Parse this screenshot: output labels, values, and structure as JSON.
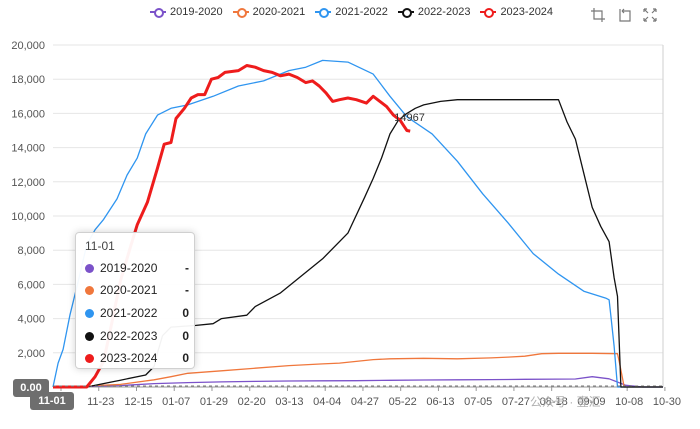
{
  "legend": [
    {
      "name": "2019-2020",
      "color": "#7b52c9"
    },
    {
      "name": "2020-2021",
      "color": "#f0773c"
    },
    {
      "name": "2021-2022",
      "color": "#2f95f0"
    },
    {
      "name": "2022-2023",
      "color": "#111111"
    },
    {
      "name": "2023-2024",
      "color": "#ee1c1c"
    }
  ],
  "toolbox": [
    "zoom-icon",
    "zoom-reset-icon",
    "fullscreen-icon"
  ],
  "tooltip": {
    "title": "11-01",
    "rows": [
      {
        "name": "2019-2020",
        "value": "-",
        "color": "#7b52c9"
      },
      {
        "name": "2020-2021",
        "value": "-",
        "color": "#f0773c"
      },
      {
        "name": "2021-2022",
        "value": "0",
        "color": "#2f95f0"
      },
      {
        "name": "2022-2023",
        "value": "0",
        "color": "#111111"
      },
      {
        "name": "2023-2024",
        "value": "0",
        "color": "#ee1c1c"
      }
    ]
  },
  "axis_pointer": {
    "y_label": "0.00",
    "x_label": "11-01"
  },
  "watermark": "公众号 · 壹汇",
  "chart_data": {
    "type": "line",
    "x_ticks": [
      "11-01",
      "11-23",
      "12-15",
      "01-07",
      "01-29",
      "02-20",
      "03-13",
      "04-04",
      "04-27",
      "05-22",
      "06-13",
      "07-05",
      "07-27",
      "08-18",
      "09-09",
      "10-08",
      "10-30"
    ],
    "ylim": [
      0,
      20000
    ],
    "y_ticks": [
      "0",
      "2,000",
      "4,000",
      "6,000",
      "8,000",
      "10,000",
      "12,000",
      "14,000",
      "16,000",
      "18,000",
      "20,000"
    ],
    "grid": true,
    "legend_position": "top-center",
    "annotation": {
      "text": "14967",
      "series": "2023-2024"
    },
    "series": [
      {
        "name": "2019-2020",
        "color": "#7b52c9",
        "points": [
          [
            2,
            0
          ],
          [
            20,
            40
          ],
          [
            40,
            80
          ],
          [
            60,
            200
          ],
          [
            80,
            260
          ],
          [
            100,
            300
          ],
          [
            120,
            330
          ],
          [
            140,
            350
          ],
          [
            160,
            360
          ],
          [
            180,
            370
          ],
          [
            200,
            390
          ],
          [
            220,
            410
          ],
          [
            240,
            420
          ],
          [
            260,
            430
          ],
          [
            270,
            440
          ],
          [
            280,
            450
          ],
          [
            300,
            460
          ],
          [
            310,
            470
          ],
          [
            320,
            600
          ],
          [
            330,
            480
          ],
          [
            340,
            100
          ],
          [
            350,
            0
          ],
          [
            362,
            0
          ]
        ]
      },
      {
        "name": "2020-2021",
        "color": "#f0773c",
        "points": [
          [
            2,
            0
          ],
          [
            20,
            60
          ],
          [
            40,
            150
          ],
          [
            60,
            420
          ],
          [
            70,
            600
          ],
          [
            80,
            800
          ],
          [
            100,
            950
          ],
          [
            120,
            1100
          ],
          [
            140,
            1250
          ],
          [
            160,
            1350
          ],
          [
            170,
            1400
          ],
          [
            180,
            1500
          ],
          [
            190,
            1600
          ],
          [
            200,
            1650
          ],
          [
            220,
            1680
          ],
          [
            240,
            1650
          ],
          [
            260,
            1700
          ],
          [
            270,
            1750
          ],
          [
            280,
            1800
          ],
          [
            290,
            1950
          ],
          [
            300,
            1970
          ],
          [
            320,
            1970
          ],
          [
            335,
            1950
          ],
          [
            336,
            1500
          ],
          [
            339,
            0
          ],
          [
            362,
            0
          ]
        ]
      },
      {
        "name": "2021-2022",
        "color": "#2f95f0",
        "points": [
          [
            0,
            0
          ],
          [
            3,
            1400
          ],
          [
            6,
            2200
          ],
          [
            10,
            4200
          ],
          [
            15,
            6200
          ],
          [
            20,
            8300
          ],
          [
            25,
            9200
          ],
          [
            30,
            9800
          ],
          [
            38,
            11000
          ],
          [
            44,
            12400
          ],
          [
            50,
            13400
          ],
          [
            55,
            14800
          ],
          [
            62,
            15900
          ],
          [
            70,
            16300
          ],
          [
            80,
            16500
          ],
          [
            95,
            17000
          ],
          [
            110,
            17600
          ],
          [
            125,
            17900
          ],
          [
            140,
            18500
          ],
          [
            150,
            18700
          ],
          [
            160,
            19100
          ],
          [
            175,
            19000
          ],
          [
            190,
            18300
          ],
          [
            200,
            17000
          ],
          [
            210,
            15800
          ],
          [
            225,
            14800
          ],
          [
            240,
            13200
          ],
          [
            255,
            11300
          ],
          [
            270,
            9600
          ],
          [
            285,
            7800
          ],
          [
            300,
            6600
          ],
          [
            315,
            5600
          ],
          [
            328,
            5200
          ],
          [
            330,
            5100
          ],
          [
            331,
            4200
          ],
          [
            333,
            2400
          ],
          [
            335,
            0
          ],
          [
            362,
            0
          ]
        ]
      },
      {
        "name": "2022-2023",
        "color": "#111111",
        "points": [
          [
            0,
            0
          ],
          [
            20,
            0
          ],
          [
            40,
            400
          ],
          [
            55,
            700
          ],
          [
            60,
            1200
          ],
          [
            62,
            2000
          ],
          [
            65,
            3000
          ],
          [
            70,
            3500
          ],
          [
            85,
            3600
          ],
          [
            95,
            3700
          ],
          [
            100,
            4000
          ],
          [
            115,
            4200
          ],
          [
            120,
            4700
          ],
          [
            135,
            5500
          ],
          [
            145,
            6300
          ],
          [
            160,
            7500
          ],
          [
            175,
            9000
          ],
          [
            185,
            11100
          ],
          [
            190,
            12200
          ],
          [
            195,
            13400
          ],
          [
            200,
            14800
          ],
          [
            205,
            15600
          ],
          [
            210,
            16000
          ],
          [
            215,
            16300
          ],
          [
            220,
            16500
          ],
          [
            230,
            16700
          ],
          [
            240,
            16800
          ],
          [
            260,
            16800
          ],
          [
            280,
            16800
          ],
          [
            295,
            16800
          ],
          [
            300,
            16800
          ],
          [
            305,
            15500
          ],
          [
            310,
            14500
          ],
          [
            315,
            12500
          ],
          [
            320,
            10500
          ],
          [
            325,
            9400
          ],
          [
            330,
            8500
          ],
          [
            333,
            6400
          ],
          [
            335,
            5300
          ],
          [
            337,
            0
          ],
          [
            362,
            0
          ]
        ]
      },
      {
        "name": "2023-2024",
        "color": "#ee1c1c",
        "points": [
          [
            0,
            0
          ],
          [
            20,
            0
          ],
          [
            25,
            600
          ],
          [
            30,
            1500
          ],
          [
            35,
            3800
          ],
          [
            40,
            6200
          ],
          [
            46,
            8200
          ],
          [
            50,
            9500
          ],
          [
            56,
            10800
          ],
          [
            62,
            12800
          ],
          [
            66,
            14200
          ],
          [
            70,
            14300
          ],
          [
            73,
            15700
          ],
          [
            78,
            16300
          ],
          [
            82,
            16900
          ],
          [
            86,
            17100
          ],
          [
            90,
            17100
          ],
          [
            94,
            18000
          ],
          [
            98,
            18100
          ],
          [
            102,
            18400
          ],
          [
            110,
            18500
          ],
          [
            115,
            18800
          ],
          [
            120,
            18700
          ],
          [
            125,
            18500
          ],
          [
            130,
            18400
          ],
          [
            135,
            18200
          ],
          [
            140,
            18300
          ],
          [
            145,
            18100
          ],
          [
            150,
            17800
          ],
          [
            154,
            17900
          ],
          [
            158,
            17600
          ],
          [
            162,
            17200
          ],
          [
            166,
            16700
          ],
          [
            170,
            16800
          ],
          [
            175,
            16900
          ],
          [
            180,
            16800
          ],
          [
            186,
            16600
          ],
          [
            190,
            17000
          ],
          [
            194,
            16700
          ],
          [
            198,
            16400
          ],
          [
            202,
            15900
          ],
          [
            206,
            15600
          ],
          [
            208,
            15300
          ],
          [
            210,
            15000
          ],
          [
            212,
            14967
          ]
        ]
      }
    ]
  }
}
